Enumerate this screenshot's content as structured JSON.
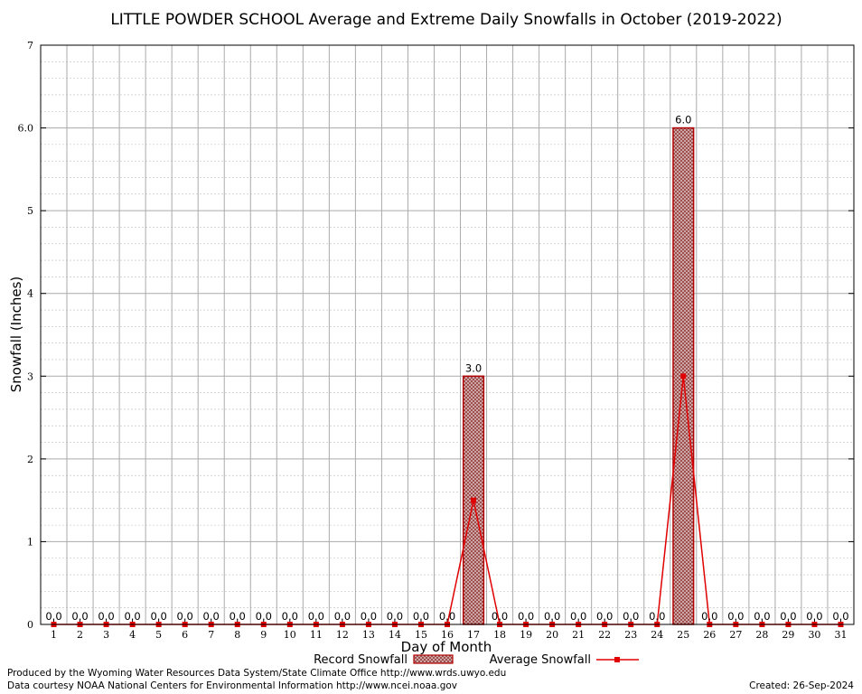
{
  "title": "LITTLE POWDER SCHOOL Average and Extreme Daily Snowfalls in October (2019-2022)",
  "footer": {
    "line1": "Produced by the Wyoming Water Resources Data System/State Climate Office http://www.wrds.uwyo.edu",
    "line2": "Data courtesy NOAA National Centers for Environmental Information http://www.ncei.noaa.gov",
    "created": "Created:  26-Sep-2024"
  },
  "colors": {
    "record_bar_edge": "#b00000",
    "record_bar_fill": "#c8a0a0",
    "average_line": "#e00000",
    "grid_major": "#aaaaaa",
    "grid_minor": "#bbbbbb"
  },
  "chart_data": {
    "type": "bar",
    "title": "LITTLE POWDER SCHOOL Average and Extreme Daily Snowfalls in October (2019-2022)",
    "xlabel": "Day of Month",
    "ylabel": "Snowfall (Inches)",
    "ylim": [
      0,
      7
    ],
    "yticks": [
      "0",
      "1",
      "2",
      "3",
      "4",
      "5",
      "6.0",
      "7"
    ],
    "grid": true,
    "legend": "bottom-center",
    "categories": [
      "1",
      "2",
      "3",
      "4",
      "5",
      "6",
      "7",
      "8",
      "9",
      "10",
      "11",
      "12",
      "13",
      "14",
      "15",
      "16",
      "17",
      "18",
      "19",
      "20",
      "21",
      "22",
      "23",
      "24",
      "25",
      "26",
      "27",
      "28",
      "29",
      "30",
      "31"
    ],
    "series": [
      {
        "name": "Record Snowfall",
        "kind": "bar",
        "values": [
          0,
          0,
          0,
          0,
          0,
          0,
          0,
          0,
          0,
          0,
          0,
          0,
          0,
          0,
          0,
          0,
          3.0,
          0,
          0,
          0,
          0,
          0,
          0,
          0,
          6.0,
          0,
          0,
          0,
          0,
          0,
          0
        ],
        "labels": [
          "0.0",
          "0.0",
          "0.0",
          "0.0",
          "0.0",
          "0.0",
          "0.0",
          "0.0",
          "0.0",
          "0.0",
          "0.0",
          "0.0",
          "0.0",
          "0.0",
          "0.0",
          "0.0",
          "3.0",
          "0.0",
          "0.0",
          "0.0",
          "0.0",
          "0.0",
          "0.0",
          "0.0",
          "6.0",
          "0.0",
          "0.0",
          "0.0",
          "0.0",
          "0.0",
          "0.0"
        ]
      },
      {
        "name": "Average Snowfall",
        "kind": "line",
        "values": [
          0,
          0,
          0,
          0,
          0,
          0,
          0,
          0,
          0,
          0,
          0,
          0,
          0,
          0,
          0,
          0,
          1.5,
          0,
          0,
          0,
          0,
          0,
          0,
          0,
          3.0,
          0,
          0,
          0,
          0,
          0,
          0
        ]
      }
    ]
  }
}
